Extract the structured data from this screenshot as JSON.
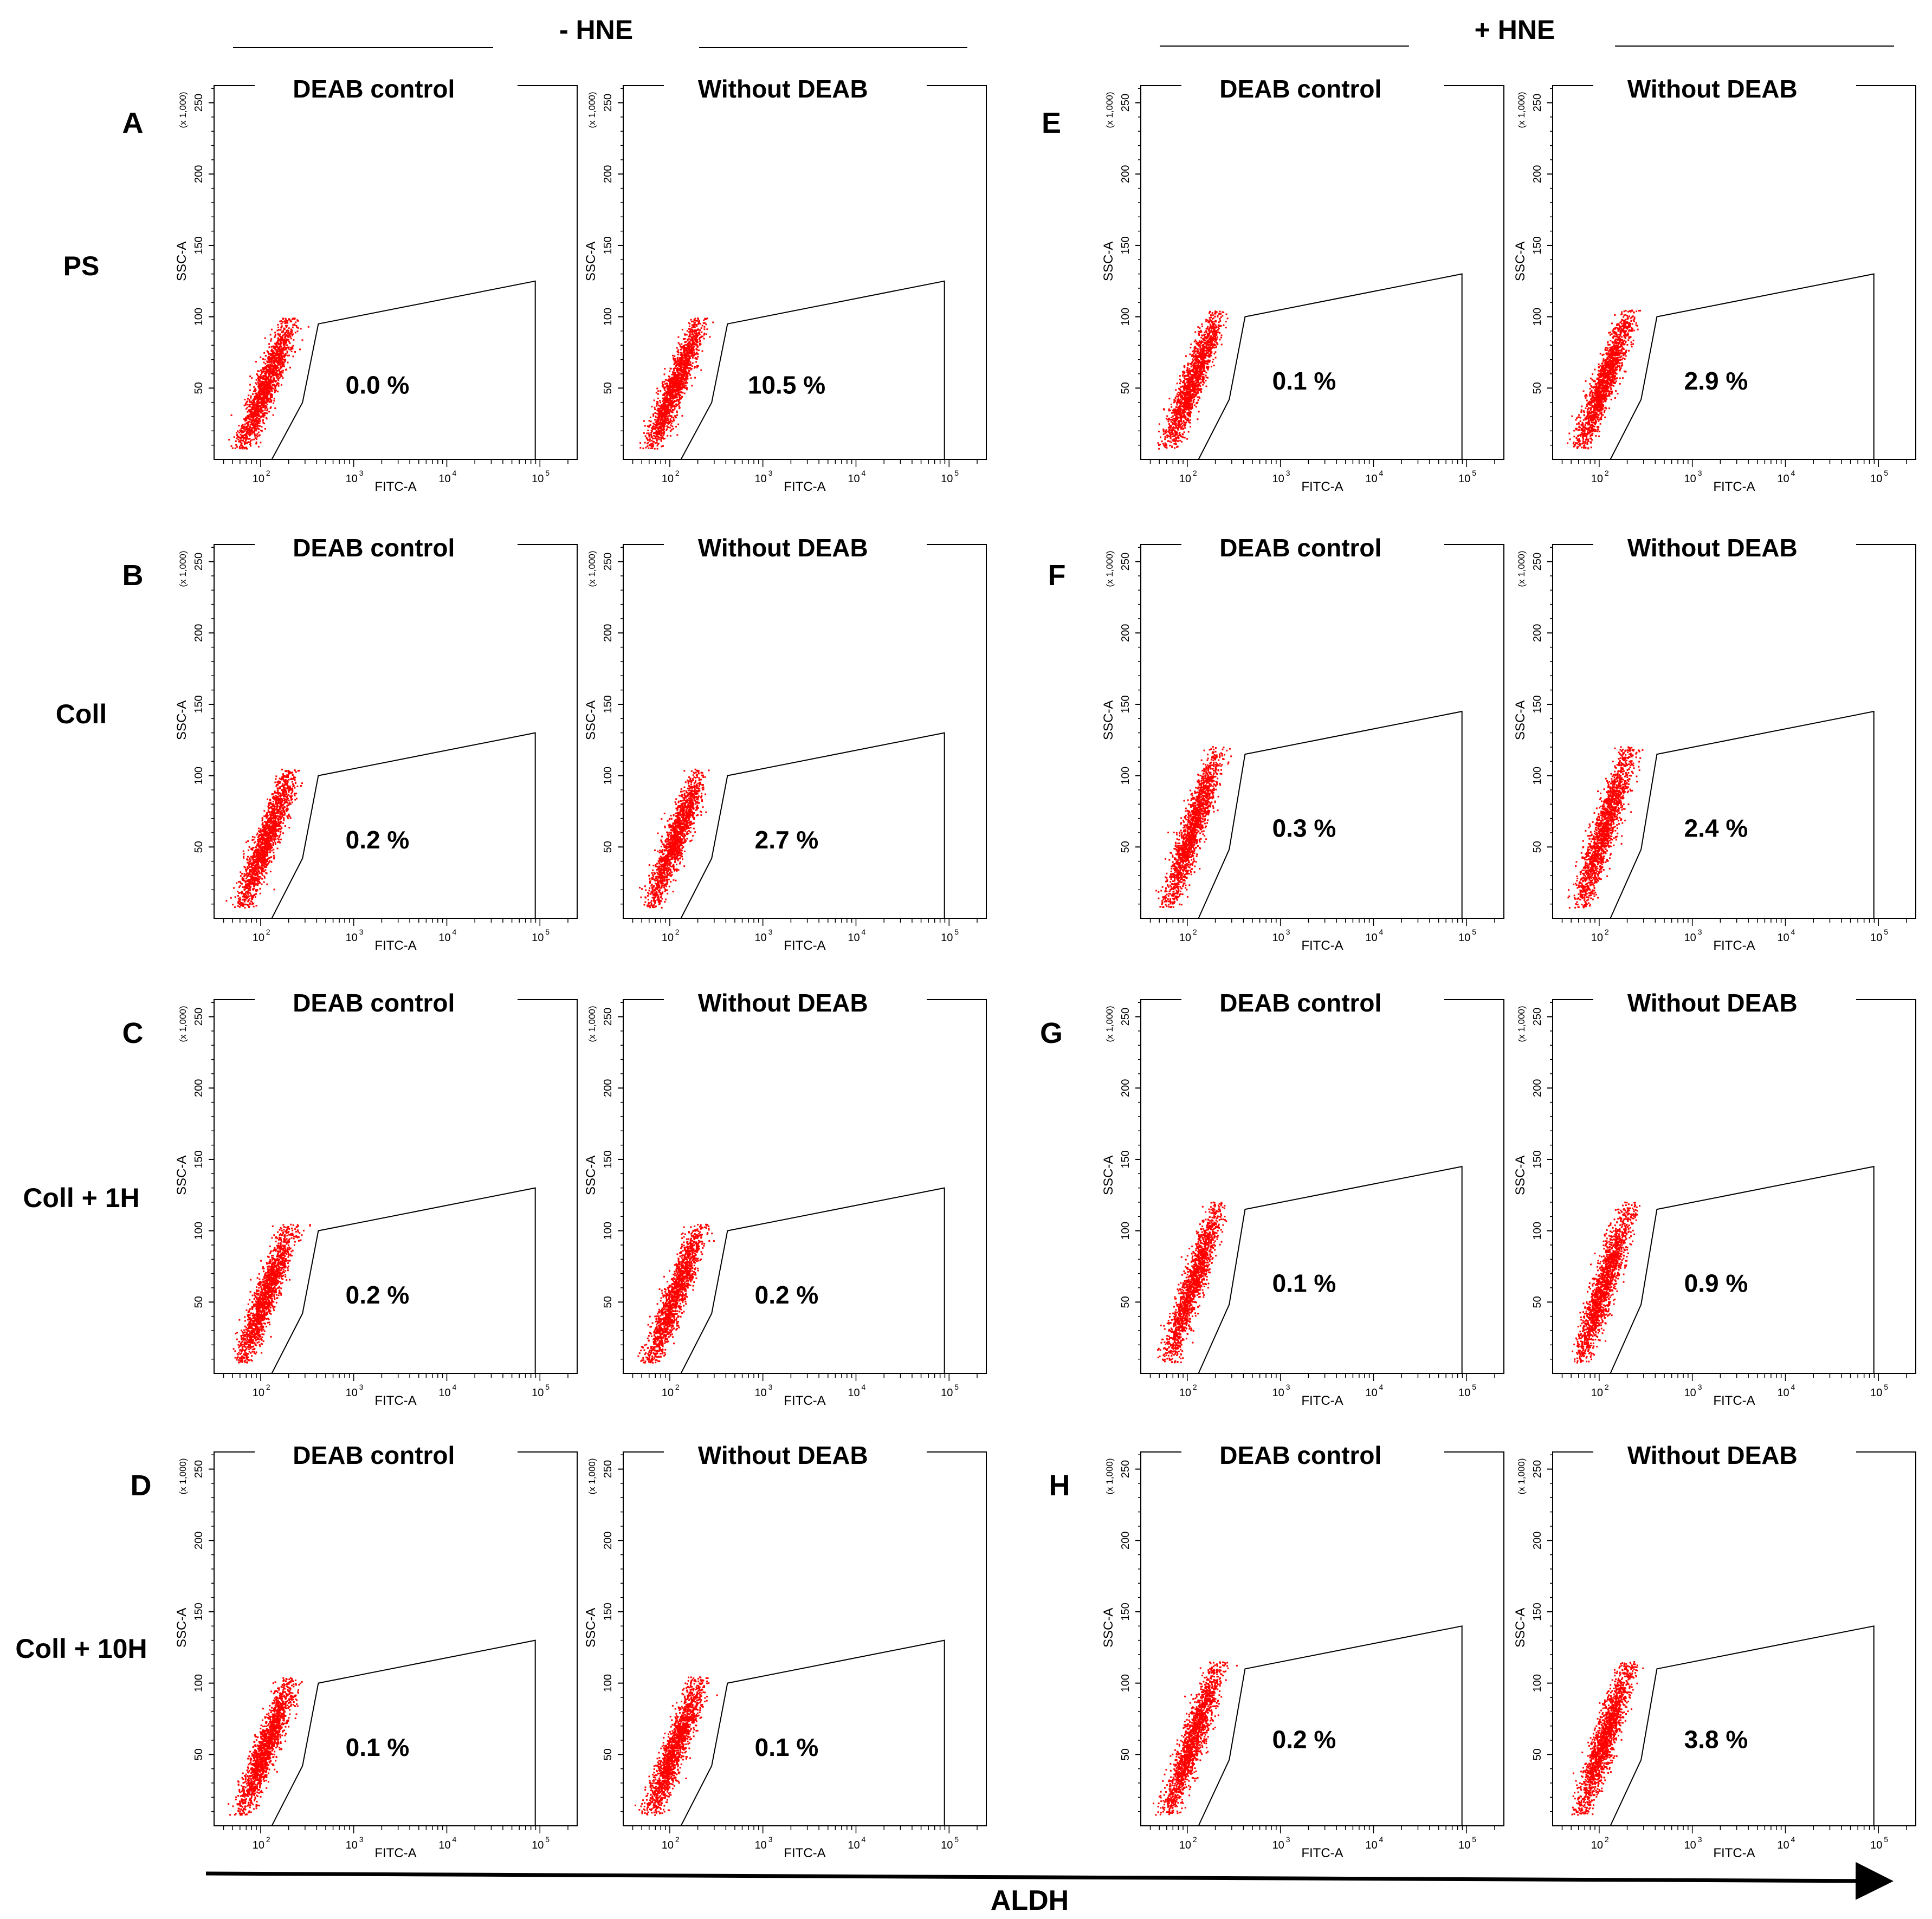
{
  "columns": [
    {
      "header": "- HNE",
      "panel_titles": [
        "DEAB control",
        "Without DEAB"
      ]
    },
    {
      "header": "+ HNE",
      "panel_titles": [
        "DEAB control",
        "Without DEAB"
      ]
    }
  ],
  "rows": [
    {
      "label": "PS",
      "minus_hne_letter": "A",
      "plus_hne_letter": "E"
    },
    {
      "label": "Coll",
      "minus_hne_letter": "B",
      "plus_hne_letter": "F"
    },
    {
      "label": "Coll + 1H",
      "minus_hne_letter": "C",
      "plus_hne_letter": "G"
    },
    {
      "label": "Coll + 10H",
      "minus_hne_letter": "D",
      "plus_hne_letter": "H"
    }
  ],
  "axis": {
    "xlabel": "FITC-A",
    "ylabel": "SSC-A",
    "y_multiplier": "(x 1,000)",
    "y_ticks": [
      50,
      100,
      150,
      200,
      250
    ],
    "x_tick_bases": [
      "10",
      "10",
      "10",
      "10"
    ],
    "x_tick_exps": [
      "2",
      "3",
      "4",
      "5"
    ]
  },
  "bottom_label": "ALDH",
  "colors": {
    "negative_events": "#ff0000",
    "aldh_positive_events": "#00dd00",
    "gate": "#000000"
  },
  "chart_data": {
    "type": "scatter",
    "description_in_figure": "Flow cytometry dot plots, SSC-A vs FITC-A",
    "panels": [
      {
        "letter": "A",
        "row_label": "PS",
        "group": "- HNE",
        "condition": "DEAB control",
        "gate_percent": "0.0 %",
        "green_fraction": 0.0,
        "cluster_top": 95
      },
      {
        "letter": "A",
        "row_label": "PS",
        "group": "- HNE",
        "condition": "Without DEAB",
        "gate_percent": "10.5 %",
        "green_fraction": 0.105,
        "cluster_top": 95
      },
      {
        "letter": "E",
        "row_label": "PS",
        "group": "+ HNE",
        "condition": "DEAB control",
        "gate_percent": "0.1 %",
        "green_fraction": 0.001,
        "cluster_top": 100
      },
      {
        "letter": "E",
        "row_label": "PS",
        "group": "+ HNE",
        "condition": "Without DEAB",
        "gate_percent": "2.9 %",
        "green_fraction": 0.029,
        "cluster_top": 100
      },
      {
        "letter": "B",
        "row_label": "Coll",
        "group": "- HNE",
        "condition": "DEAB control",
        "gate_percent": "0.2 %",
        "green_fraction": 0.002,
        "cluster_top": 100
      },
      {
        "letter": "B",
        "row_label": "Coll",
        "group": "- HNE",
        "condition": "Without DEAB",
        "gate_percent": "2.7 %",
        "green_fraction": 0.027,
        "cluster_top": 100
      },
      {
        "letter": "F",
        "row_label": "Coll",
        "group": "+ HNE",
        "condition": "DEAB control",
        "gate_percent": "0.3 %",
        "green_fraction": 0.003,
        "cluster_top": 115
      },
      {
        "letter": "F",
        "row_label": "Coll",
        "group": "+ HNE",
        "condition": "Without DEAB",
        "gate_percent": "2.4 %",
        "green_fraction": 0.024,
        "cluster_top": 115
      },
      {
        "letter": "C",
        "row_label": "Coll + 1H",
        "group": "- HNE",
        "condition": "DEAB control",
        "gate_percent": "0.2 %",
        "green_fraction": 0.002,
        "cluster_top": 100
      },
      {
        "letter": "C",
        "row_label": "Coll + 1H",
        "group": "- HNE",
        "condition": "Without DEAB",
        "gate_percent": "0.2 %",
        "green_fraction": 0.002,
        "cluster_top": 100
      },
      {
        "letter": "G",
        "row_label": "Coll + 1H",
        "group": "+ HNE",
        "condition": "DEAB control",
        "gate_percent": "0.1 %",
        "green_fraction": 0.001,
        "cluster_top": 115
      },
      {
        "letter": "G",
        "row_label": "Coll + 1H",
        "group": "+ HNE",
        "condition": "Without DEAB",
        "gate_percent": "0.9 %",
        "green_fraction": 0.009,
        "cluster_top": 115
      },
      {
        "letter": "D",
        "row_label": "Coll + 10H",
        "group": "- HNE",
        "condition": "DEAB control",
        "gate_percent": "0.1 %",
        "green_fraction": 0.001,
        "cluster_top": 100
      },
      {
        "letter": "D",
        "row_label": "Coll + 10H",
        "group": "- HNE",
        "condition": "Without DEAB",
        "gate_percent": "0.1 %",
        "green_fraction": 0.001,
        "cluster_top": 100
      },
      {
        "letter": "H",
        "row_label": "Coll + 10H",
        "group": "+ HNE",
        "condition": "DEAB control",
        "gate_percent": "0.2 %",
        "green_fraction": 0.002,
        "cluster_top": 110
      },
      {
        "letter": "H",
        "row_label": "Coll + 10H",
        "group": "+ HNE",
        "condition": "Without DEAB",
        "gate_percent": "3.8 %",
        "green_fraction": 0.038,
        "cluster_top": 110
      }
    ]
  }
}
